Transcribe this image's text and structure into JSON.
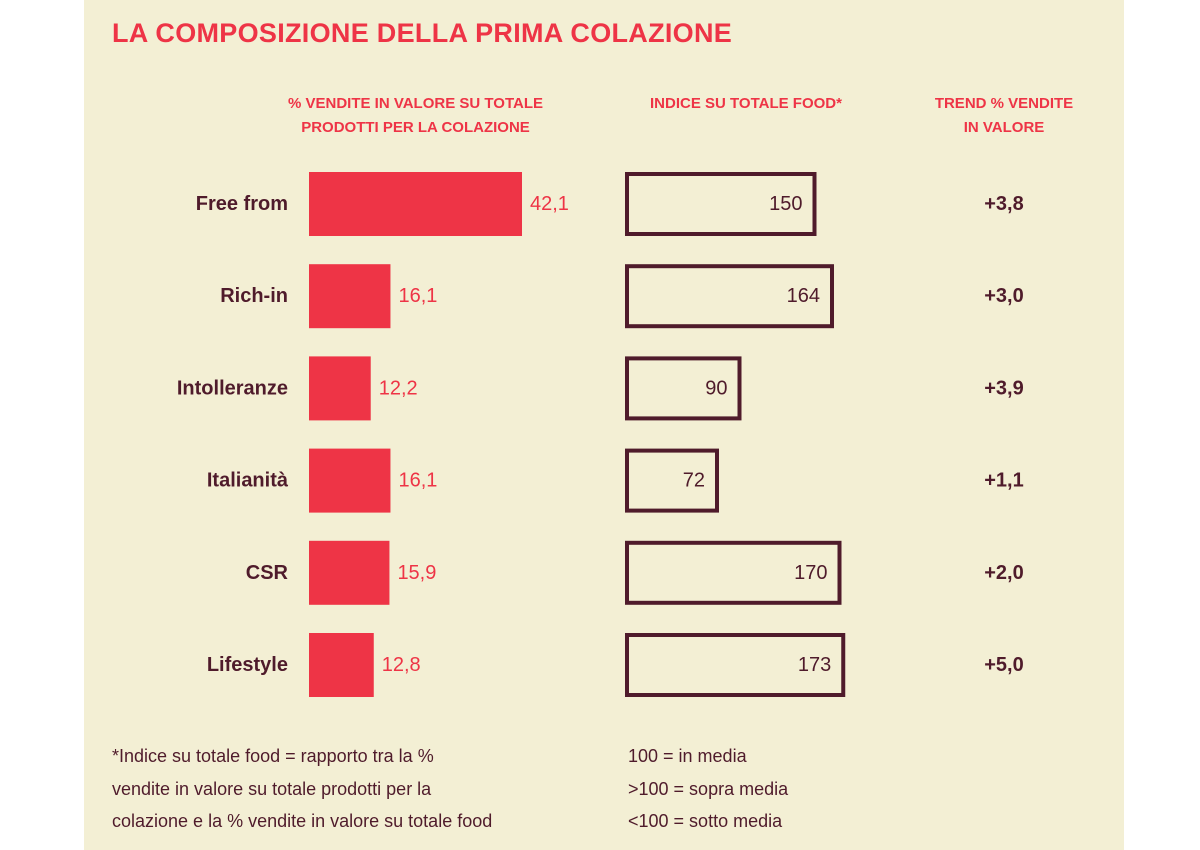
{
  "title": "LA COMPOSIZIONE DELLA PRIMA COLAZIONE",
  "colors": {
    "accent": "#ee3446",
    "dark": "#4f1b2b",
    "panel": "#f3efd4"
  },
  "headers": {
    "share_lines": [
      "% VENDITE IN VALORE SU TOTALE",
      "PRODOTTI PER LA COLAZIONE"
    ],
    "index_lines": [
      "INDICE SU TOTALE FOOD*"
    ],
    "trend_lines": [
      "TREND % VENDITE",
      "IN VALORE"
    ]
  },
  "chart_data": {
    "type": "bar",
    "categories": [
      "Free from",
      "Rich-in",
      "Intolleranze",
      "Italianità",
      "CSR",
      "Lifestyle"
    ],
    "series": [
      {
        "name": "% VENDITE IN VALORE SU TOTALE PRODOTTI PER LA COLAZIONE",
        "values": [
          42.1,
          16.1,
          12.2,
          16.1,
          15.9,
          12.8
        ],
        "labels": [
          "42,1",
          "16,1",
          "12,2",
          "16,1",
          "15,9",
          "12,8"
        ]
      },
      {
        "name": "INDICE SU TOTALE FOOD*",
        "values": [
          150,
          164,
          90,
          72,
          170,
          173
        ],
        "labels": [
          "150",
          "164",
          "90",
          "72",
          "170",
          "173"
        ]
      },
      {
        "name": "TREND % VENDITE IN VALORE",
        "values": [
          3.8,
          3.0,
          3.9,
          1.1,
          2.0,
          5.0
        ],
        "labels": [
          "+3,8",
          "+3,0",
          "+3,9",
          "+1,1",
          "+2,0",
          "+5,0"
        ]
      }
    ]
  },
  "footnote_lines": [
    "*Indice su totale food = rapporto tra la %",
    "vendite in valore su totale prodotti per la",
    "colazione e la % vendite in valore su totale food"
  ],
  "legend_lines": [
    "100 = in media",
    ">100 = sopra media",
    "<100 = sotto media"
  ]
}
